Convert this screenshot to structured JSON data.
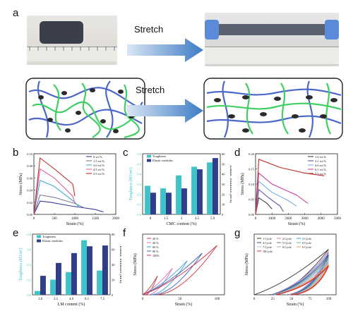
{
  "figure": {
    "panel_labels": [
      "a",
      "b",
      "c",
      "d",
      "e",
      "f",
      "g"
    ],
    "stretch_label_top": "Stretch",
    "stretch_label_bottom": "Stretch"
  },
  "colors": {
    "arrow": "#4a86c8",
    "blue_chain": "#4a67c9",
    "green_chain": "#3fcf63",
    "teal_bar": "#3ec4c8",
    "navy_bar": "#2f3d8a"
  },
  "chart_data": [
    {
      "panel": "b",
      "type": "line",
      "xlabel": "Strain (%)",
      "ylabel": "Stress (MPa)",
      "xlim": [
        0,
        2000
      ],
      "ylim": [
        0,
        0.1
      ],
      "xticks": [
        "0",
        "500",
        "1000",
        "1500",
        "2000"
      ],
      "yticks": [
        "0.00",
        "0.02",
        "0.04",
        "0.06",
        "0.08",
        "0.10"
      ],
      "series": [
        {
          "name": "0 wt.%",
          "color": "#3a3a9a",
          "points": [
            [
              0,
              0
            ],
            [
              150,
              0.022
            ],
            [
              400,
              0.02
            ],
            [
              900,
              0.014
            ],
            [
              1500,
              0.008
            ],
            [
              1700,
              0.004
            ]
          ]
        },
        {
          "name": "1.5 wt.%",
          "color": "#7a7a9a",
          "points": [
            [
              0,
              0
            ],
            [
              150,
              0.032
            ],
            [
              500,
              0.028
            ],
            [
              1000,
              0.018
            ],
            [
              1250,
              0.01
            ]
          ]
        },
        {
          "name": "3.0 wt.%",
          "color": "#3fb0d0",
          "points": [
            [
              0,
              0
            ],
            [
              150,
              0.056
            ],
            [
              500,
              0.046
            ],
            [
              1000,
              0.02
            ],
            [
              1100,
              0.012
            ]
          ]
        },
        {
          "name": "4.5 wt.%",
          "color": "#e060a0",
          "points": [
            [
              0,
              0
            ],
            [
              150,
              0.075
            ],
            [
              500,
              0.06
            ],
            [
              950,
              0.03
            ],
            [
              1000,
              0.018
            ]
          ]
        },
        {
          "name": "5.9 wt.%",
          "color": "#c0302a",
          "points": [
            [
              0,
              0
            ],
            [
              150,
              0.093
            ],
            [
              500,
              0.075
            ],
            [
              950,
              0.05
            ],
            [
              1000,
              0.03
            ]
          ]
        }
      ]
    },
    {
      "panel": "c",
      "type": "bar",
      "xlabel": "CMC content (%)",
      "ylabel": "Toughness (MJ/m³)",
      "ylabel_right": "Elastic modulus (kPa)",
      "categories": [
        "0",
        "1.5",
        "3",
        "4.5",
        "5.9"
      ],
      "series": [
        {
          "name": "Toughness",
          "color": "#3ec4c8",
          "values": [
            0.33,
            0.3,
            0.45,
            0.55,
            0.6
          ]
        },
        {
          "name": "Elastic modulus",
          "color": "#2f3d8a",
          "values": [
            25,
            25,
            30,
            52,
            65
          ]
        }
      ],
      "left_ticks": [
        "0.0",
        "0.1",
        "0.2",
        "0.3",
        "0.4",
        "0.5",
        "0.6"
      ],
      "right_ticks": [
        "0",
        "10",
        "20",
        "30",
        "40",
        "50",
        "60"
      ]
    },
    {
      "panel": "d",
      "type": "line",
      "xlabel": "Strain (%)",
      "ylabel": "Stress (MPa)",
      "xlim": [
        0,
        5000
      ],
      "ylim": [
        0,
        0.22
      ],
      "xticks": [
        "0",
        "1000",
        "2000",
        "3000",
        "4000",
        "5000"
      ],
      "yticks": [
        "0.00",
        "0.05",
        "0.10",
        "0.15",
        "0.20"
      ],
      "series": [
        {
          "name": "1.6 wt.%",
          "color": "#444",
          "points": [
            [
              0,
              0
            ],
            [
              200,
              0.06
            ],
            [
              700,
              0.04
            ],
            [
              1000,
              0.02
            ]
          ]
        },
        {
          "name": "3.1 wt.%",
          "color": "#5a5aa8",
          "points": [
            [
              0,
              0
            ],
            [
              200,
              0.09
            ],
            [
              800,
              0.06
            ],
            [
              1500,
              0.03
            ],
            [
              1700,
              0.01
            ]
          ]
        },
        {
          "name": "4.6 wt.%",
          "color": "#7ab0e0",
          "points": [
            [
              0,
              0
            ],
            [
              200,
              0.12
            ],
            [
              1000,
              0.08
            ],
            [
              2000,
              0.05
            ],
            [
              2500,
              0.03
            ]
          ]
        },
        {
          "name": "6.1 wt.%",
          "color": "#d040a0",
          "points": [
            [
              0,
              0
            ],
            [
              200,
              0.15
            ],
            [
              1000,
              0.11
            ],
            [
              2500,
              0.07
            ],
            [
              3200,
              0.04
            ]
          ]
        },
        {
          "name": "7.5 wt.%",
          "color": "#c0302a",
          "points": [
            [
              0,
              0
            ],
            [
              200,
              0.2
            ],
            [
              1500,
              0.17
            ],
            [
              3000,
              0.15
            ],
            [
              4200,
              0.14
            ]
          ]
        }
      ]
    },
    {
      "panel": "e",
      "type": "bar",
      "xlabel": "LM content (%)",
      "ylabel": "Toughness (MJ/m³)",
      "ylabel_right": "Elastic modulus (kPa)",
      "categories": [
        "1.6",
        "3.1",
        "4.6",
        "6.1",
        "7.5"
      ],
      "series": [
        {
          "name": "Toughness",
          "color": "#3ec4c8",
          "values": [
            0.05,
            0.2,
            0.3,
            0.72,
            0.32
          ]
        },
        {
          "name": "Elastic modulus",
          "color": "#2f3d8a",
          "values": [
            25,
            42,
            55,
            64,
            65
          ]
        }
      ],
      "left_ticks": [
        "0.0",
        "0.2",
        "0.4",
        "0.6",
        "0.8"
      ],
      "right_ticks": [
        "0",
        "20",
        "40",
        "60",
        "80"
      ]
    },
    {
      "panel": "f",
      "type": "line",
      "xlabel": "Strain (%)",
      "ylabel": "Stress (MPa)",
      "xlim": [
        0,
        110
      ],
      "ylim": [
        0,
        0.16
      ],
      "xticks": [
        "0",
        "50",
        "100"
      ],
      "series": [
        {
          "name": "20 %",
          "color": "#c04040",
          "max": 20
        },
        {
          "name": "40 %",
          "color": "#e070b0",
          "max": 40
        },
        {
          "name": "60 %",
          "color": "#3fa0e0",
          "max": 60
        },
        {
          "name": "80 %",
          "color": "#4060c0",
          "max": 80
        },
        {
          "name": "100%",
          "color": "#d03040",
          "max": 100
        }
      ]
    },
    {
      "panel": "g",
      "type": "line",
      "xlabel": "Strain (%)",
      "ylabel": "Stress (MPa)",
      "xlim": [
        0,
        110
      ],
      "ylim": [
        0,
        0.2
      ],
      "xticks": [
        "0",
        "25",
        "50",
        "75",
        "100"
      ],
      "series": [
        {
          "name": "1 Cycle",
          "color": "#333"
        },
        {
          "name": "2 Cycle",
          "color": "#e070b0"
        },
        {
          "name": "3 Cycle",
          "color": "#3fa0e0"
        },
        {
          "name": "4 Cycle",
          "color": "#2040a0"
        },
        {
          "name": "5 Cycle",
          "color": "#7a7a7a"
        },
        {
          "name": "6 Cycle",
          "color": "#60b0a0"
        },
        {
          "name": "7 Cycle",
          "color": "#a0c0e0"
        },
        {
          "name": "8 Cycle",
          "color": "#c0a0c0"
        },
        {
          "name": "9 Cycle",
          "color": "#f0a040"
        },
        {
          "name": "10Cycle",
          "color": "#d03030"
        }
      ]
    }
  ]
}
